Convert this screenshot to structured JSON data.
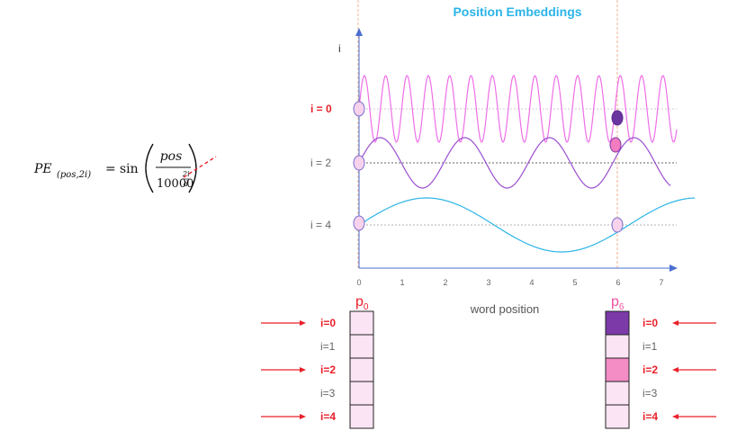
{
  "title": "Position Embeddings",
  "formula": {
    "lhs": "PE",
    "lhs_sub": "(pos,2i)",
    "equals": "=",
    "func": "sin",
    "numerator": "pos",
    "denominator_base": "10000",
    "exp_num": "2i",
    "exp_den": "d"
  },
  "plot": {
    "y_axis_label": "i",
    "x_axis_label": "word position",
    "x_ticks": [
      "0",
      "1",
      "2",
      "3",
      "4",
      "5",
      "6",
      "7"
    ],
    "row_labels": [
      {
        "text": "i = 0",
        "color": "#e8202a"
      },
      {
        "text": "i = 2",
        "color": "#666666"
      },
      {
        "text": "i = 4",
        "color": "#666666"
      }
    ],
    "wave_colors": [
      "#ee6fe8",
      "#9b4fd0",
      "#2bb4e8"
    ]
  },
  "vectors": [
    {
      "label": "p",
      "sub": "0",
      "label_color": "#e8202a",
      "rows": [
        {
          "text": "i=0",
          "highlight": true,
          "fill": "#fbe4f4"
        },
        {
          "text": "i=1",
          "highlight": false,
          "fill": "#fbe4f4"
        },
        {
          "text": "i=2",
          "highlight": true,
          "fill": "#fbe4f4"
        },
        {
          "text": "i=3",
          "highlight": false,
          "fill": "#fbe4f4"
        },
        {
          "text": "i=4",
          "highlight": true,
          "fill": "#fbe4f4"
        }
      ]
    },
    {
      "label": "p",
      "sub": "6",
      "label_color": "#ee4fa0",
      "rows": [
        {
          "text": "i=0",
          "highlight": true,
          "fill": "#7b3aa8"
        },
        {
          "text": "i=1",
          "highlight": false,
          "fill": "#fbe4f4"
        },
        {
          "text": "i=2",
          "highlight": true,
          "fill": "#f48cc6"
        },
        {
          "text": "i=3",
          "highlight": false,
          "fill": "#fbe4f4"
        },
        {
          "text": "i=4",
          "highlight": true,
          "fill": "#fbe4f4"
        }
      ]
    }
  ],
  "colors": {
    "title": "#2bb4e8",
    "axis": "#4a6fd0",
    "highlight_text": "#e8202a",
    "plain_text": "#666666",
    "arrow": "#e8202a"
  }
}
